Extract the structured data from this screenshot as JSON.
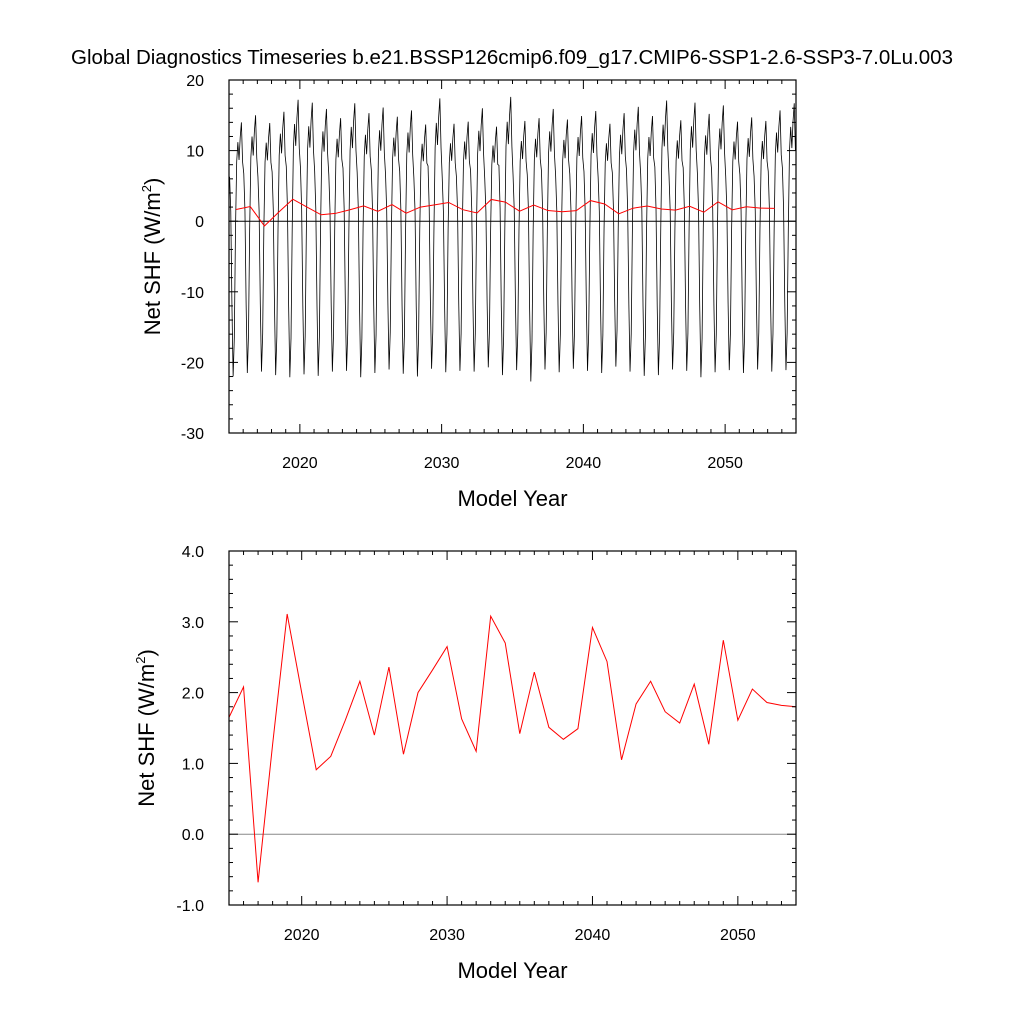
{
  "title": "Global Diagnostics Timeseries b.e21.BSSP126cmip6.f09_g17.CMIP6-SSP1-2.6-SSP3-7.0Lu.003",
  "chart_data": [
    {
      "type": "line",
      "xlabel": "Model Year",
      "ylabel_main": "Net SHF (W/m",
      "ylabel_sup": "2",
      "ylabel_end": ")",
      "xlim": [
        2015.0,
        2055.0
      ],
      "ylim": [
        -30,
        20
      ],
      "xticks": [
        2020,
        2030,
        2040,
        2050
      ],
      "xtick_labels": [
        "2020",
        "2030",
        "2040",
        "2050"
      ],
      "yticks": [
        -30,
        -20,
        -10,
        0,
        10,
        20
      ],
      "ytick_labels": [
        "-30",
        "-20",
        "-10",
        "0",
        "10",
        "20"
      ],
      "reference_line": 0,
      "grid": false,
      "colors": {
        "monthly": "#000000",
        "annual": "#ff0000",
        "reference": "#000000"
      },
      "monthly_series": {
        "start_year": 2015.0,
        "months_per_year": 12,
        "min_month_values": [
          -22.0,
          -21.5,
          -21.3,
          -21.8,
          -22.1,
          -21.7,
          -21.9,
          -21.3,
          -21.2,
          -22.1,
          -21.5,
          -21.0,
          -21.6,
          -22.0,
          -20.9,
          -21.4,
          -21.2,
          -21.3,
          -20.7,
          -21.8,
          -21.1,
          -22.7,
          -21.0,
          -21.4,
          -20.9,
          -21.2,
          -21.5,
          -20.6,
          -21.3,
          -21.9,
          -21.8,
          -21.0,
          -21.2,
          -22.1,
          -21.4,
          -21.1,
          -21.5,
          -21.0,
          -21.3,
          -21.1
        ],
        "max_month_values": [
          14.0,
          15.0,
          13.9,
          15.5,
          17.2,
          16.8,
          15.9,
          14.6,
          16.7,
          15.3,
          16.1,
          14.8,
          15.7,
          13.7,
          17.4,
          13.8,
          14.1,
          16.0,
          13.4,
          17.6,
          14.2,
          14.6,
          15.9,
          14.4,
          14.9,
          15.6,
          13.8,
          15.3,
          16.2,
          14.9,
          17.1,
          14.3,
          16.8,
          15.2,
          16.4,
          14.1,
          14.7,
          14.2,
          15.7,
          16.7
        ]
      },
      "annual_series": {
        "x": [
          2015.5,
          2016.5,
          2017.5,
          2018.5,
          2019.5,
          2020.5,
          2021.5,
          2022.5,
          2023.5,
          2024.5,
          2025.5,
          2026.5,
          2027.5,
          2028.5,
          2029.5,
          2030.5,
          2031.5,
          2032.5,
          2033.5,
          2034.5,
          2035.5,
          2036.5,
          2037.5,
          2038.5,
          2039.5,
          2040.5,
          2041.5,
          2042.5,
          2043.5,
          2044.5,
          2045.5,
          2046.5,
          2047.5,
          2048.5,
          2049.5,
          2050.5,
          2051.5,
          2052.5,
          2053.5
        ],
        "y": [
          1.65,
          2.08,
          -0.68,
          1.27,
          3.11,
          2.0,
          0.91,
          1.1,
          1.61,
          2.16,
          1.4,
          2.36,
          1.13,
          2.0,
          2.32,
          2.65,
          1.63,
          1.17,
          3.08,
          2.7,
          1.42,
          2.29,
          1.51,
          1.34,
          1.49,
          2.92,
          2.44,
          1.05,
          1.84,
          2.16,
          1.73,
          1.57,
          2.12,
          1.27,
          2.74,
          1.61,
          2.05,
          1.86,
          1.82
        ]
      }
    },
    {
      "type": "line",
      "xlabel": "Model Year",
      "ylabel_main": "Net SHF (W/m",
      "ylabel_sup": "2",
      "ylabel_end": ")",
      "xlim": [
        2015.0,
        2054.0
      ],
      "ylim": [
        -1.0,
        4.0
      ],
      "xticks": [
        2020,
        2030,
        2040,
        2050
      ],
      "xtick_labels": [
        "2020",
        "2030",
        "2040",
        "2050"
      ],
      "yticks": [
        -1.0,
        0.0,
        1.0,
        2.0,
        3.0,
        4.0
      ],
      "ytick_labels": [
        "-1.0",
        "0.0",
        "1.0",
        "2.0",
        "3.0",
        "4.0"
      ],
      "reference_line": 0,
      "grid": false,
      "colors": {
        "annual": "#ff0000",
        "reference": "#888888"
      },
      "annual_series": {
        "x": [
          2015.0,
          2016.0,
          2017.0,
          2018.0,
          2019.0,
          2020.0,
          2021.0,
          2022.0,
          2023.0,
          2024.0,
          2025.0,
          2026.0,
          2027.0,
          2028.0,
          2029.0,
          2030.0,
          2031.0,
          2032.0,
          2033.0,
          2034.0,
          2035.0,
          2036.0,
          2037.0,
          2038.0,
          2039.0,
          2040.0,
          2041.0,
          2042.0,
          2043.0,
          2044.0,
          2045.0,
          2046.0,
          2047.0,
          2048.0,
          2049.0,
          2050.0,
          2051.0,
          2052.0,
          2053.0,
          2054.0
        ],
        "y": [
          1.65,
          2.08,
          -0.68,
          1.27,
          3.11,
          2.0,
          0.91,
          1.1,
          1.61,
          2.16,
          1.4,
          2.36,
          1.13,
          2.0,
          2.32,
          2.65,
          1.63,
          1.17,
          3.08,
          2.7,
          1.42,
          2.29,
          1.51,
          1.34,
          1.49,
          2.92,
          2.44,
          1.05,
          1.84,
          2.16,
          1.73,
          1.57,
          2.12,
          1.27,
          2.74,
          1.61,
          2.05,
          1.86,
          1.82,
          1.8
        ]
      }
    }
  ]
}
